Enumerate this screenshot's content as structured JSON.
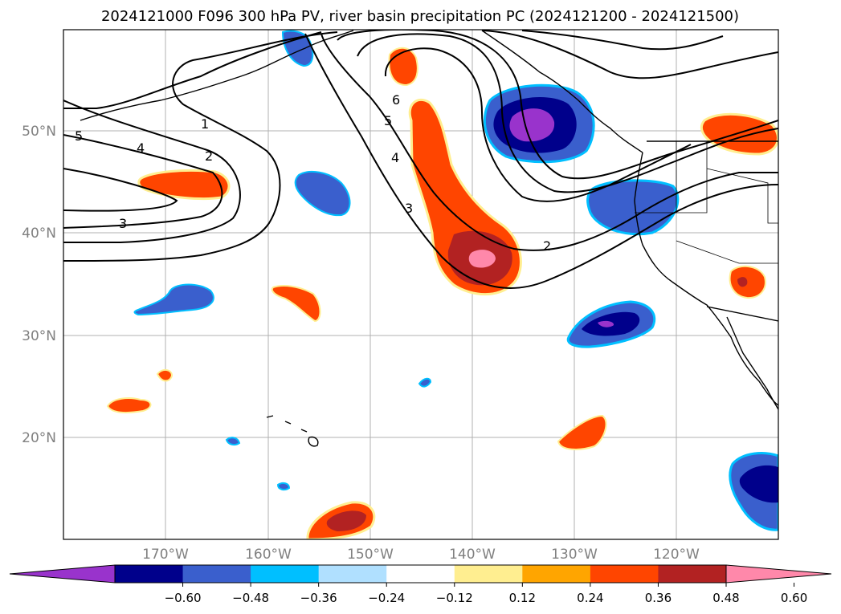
{
  "title": "2024121000 F096 300 hPa PV, river basin precipitation PC (2024121200 - 2024121500)",
  "map": {
    "lon_labels": [
      "170°W",
      "160°W",
      "150°W",
      "140°W",
      "130°W",
      "120°W"
    ],
    "lat_labels": [
      "50°N",
      "40°N",
      "30°N",
      "20°N"
    ],
    "grid": true
  },
  "pv_contours": {
    "labels": [
      "1",
      "2",
      "3",
      "4",
      "5",
      "6",
      "5",
      "4",
      "3",
      "2"
    ],
    "color": "#000000"
  },
  "colorbar": {
    "ticks": [
      "−0.60",
      "−0.48",
      "−0.36",
      "−0.24",
      "−0.12",
      "0.12",
      "0.24",
      "0.36",
      "0.48",
      "0.60"
    ],
    "colors": [
      "#9933cc",
      "#00008b",
      "#3a5fcd",
      "#00bfff",
      "#b0e0ff",
      "#ffffff",
      "#ffee90",
      "#ffa500",
      "#ff4500",
      "#b22222",
      "#ff88aa"
    ]
  }
}
